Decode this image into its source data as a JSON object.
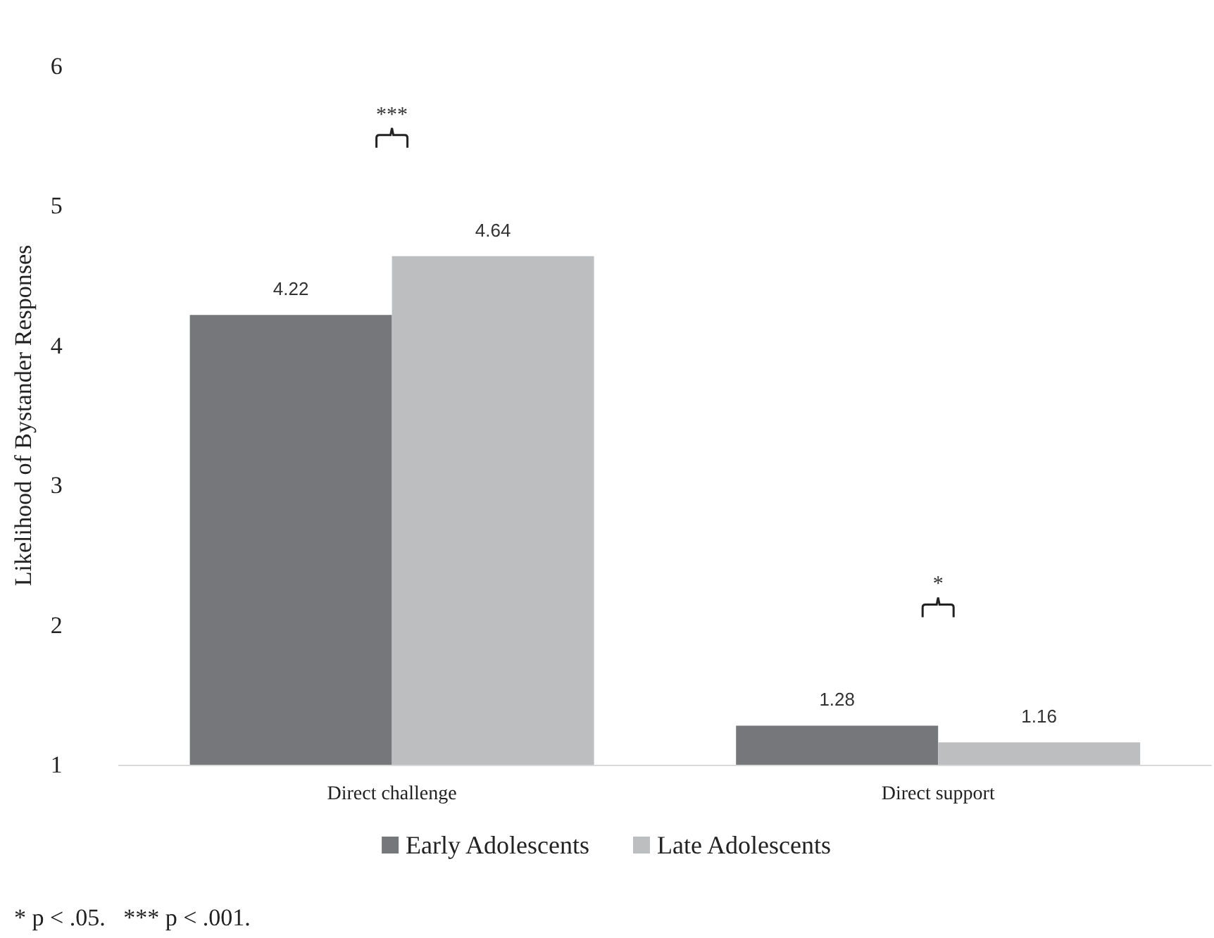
{
  "chart_data": {
    "type": "bar",
    "ylabel": "Likelihood of Bystander Responses",
    "categories": [
      "Direct challenge",
      "Direct support"
    ],
    "series": [
      {
        "name": "Early Adolescents",
        "color": "#76777b",
        "values": [
          4.22,
          1.28
        ]
      },
      {
        "name": "Late Adolescents",
        "color": "#bdbec0",
        "values": [
          4.64,
          1.16
        ]
      }
    ],
    "ylim": [
      1,
      6
    ],
    "yticks": [
      1,
      2,
      3,
      4,
      5,
      6
    ],
    "grid": false,
    "legend": "bottom",
    "data_labels": true,
    "annotations": [
      "***",
      "*",
      "* p < .05.   *** p < .001."
    ]
  }
}
